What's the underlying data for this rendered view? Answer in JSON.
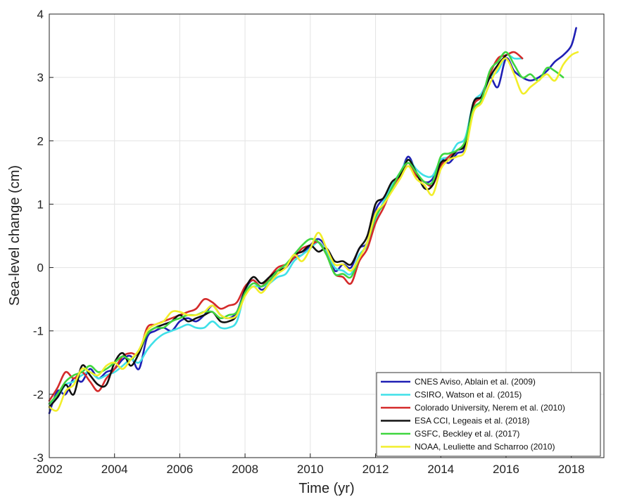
{
  "chart_data": {
    "type": "line",
    "xlabel": "Time (yr)",
    "ylabel": "Sea-level change (cm)",
    "xlim": [
      2002,
      2019
    ],
    "ylim": [
      -3,
      4
    ],
    "xticks": [
      2002,
      2004,
      2006,
      2008,
      2010,
      2012,
      2014,
      2016,
      2018
    ],
    "yticks": [
      -3,
      -2,
      -1,
      0,
      1,
      2,
      3,
      4
    ],
    "grid": true,
    "legend_position": "bottom-right",
    "series": [
      {
        "name": "CNES Aviso, Ablain et al. (2009)",
        "color": "#1f1fb4",
        "x": [
          2002.0,
          2002.25,
          2002.5,
          2002.75,
          2003.0,
          2003.25,
          2003.5,
          2003.75,
          2004.0,
          2004.25,
          2004.5,
          2004.75,
          2005.0,
          2005.25,
          2005.5,
          2005.75,
          2006.0,
          2006.25,
          2006.5,
          2006.75,
          2007.0,
          2007.25,
          2007.5,
          2007.75,
          2008.0,
          2008.25,
          2008.5,
          2008.75,
          2009.0,
          2009.25,
          2009.5,
          2009.75,
          2010.0,
          2010.25,
          2010.5,
          2010.75,
          2011.0,
          2011.25,
          2011.5,
          2011.75,
          2012.0,
          2012.25,
          2012.5,
          2012.75,
          2013.0,
          2013.25,
          2013.5,
          2013.75,
          2014.0,
          2014.25,
          2014.5,
          2014.75,
          2015.0,
          2015.25,
          2015.5,
          2015.75,
          2016.0,
          2016.25,
          2016.5,
          2016.75,
          2017.0,
          2017.25,
          2017.5,
          2017.75,
          2018.0,
          2018.15
        ],
        "y": [
          -2.3,
          -1.95,
          -2.0,
          -1.75,
          -1.8,
          -1.6,
          -1.75,
          -1.65,
          -1.6,
          -1.45,
          -1.4,
          -1.6,
          -1.1,
          -1.0,
          -0.95,
          -1.0,
          -0.85,
          -0.8,
          -0.85,
          -0.75,
          -0.6,
          -0.75,
          -0.8,
          -0.7,
          -0.35,
          -0.2,
          -0.35,
          -0.25,
          -0.05,
          0.0,
          0.15,
          0.2,
          0.35,
          0.45,
          0.3,
          -0.05,
          0.05,
          0.0,
          0.3,
          0.4,
          0.9,
          1.1,
          1.3,
          1.45,
          1.75,
          1.5,
          1.35,
          1.4,
          1.7,
          1.65,
          1.8,
          1.9,
          2.55,
          2.7,
          3.0,
          2.85,
          3.3,
          3.1,
          3.0,
          2.95,
          3.0,
          3.1,
          3.25,
          3.35,
          3.5,
          3.78
        ]
      },
      {
        "name": "CSIRO, Watson et al. (2015)",
        "color": "#3fe0e8",
        "x": [
          2002.0,
          2002.25,
          2002.5,
          2002.75,
          2003.0,
          2003.25,
          2003.5,
          2003.75,
          2004.0,
          2004.25,
          2004.5,
          2004.75,
          2005.0,
          2005.25,
          2005.5,
          2005.75,
          2006.0,
          2006.25,
          2006.5,
          2006.75,
          2007.0,
          2007.25,
          2007.5,
          2007.75,
          2008.0,
          2008.25,
          2008.5,
          2008.75,
          2009.0,
          2009.25,
          2009.5,
          2009.75,
          2010.0,
          2010.25,
          2010.5,
          2010.75,
          2011.0,
          2011.25,
          2011.5,
          2011.75,
          2012.0,
          2012.25,
          2012.5,
          2012.75,
          2013.0,
          2013.25,
          2013.5,
          2013.75,
          2014.0,
          2014.25,
          2014.5,
          2014.75,
          2015.0,
          2015.25,
          2015.5,
          2015.75,
          2016.0,
          2016.25,
          2016.5
        ],
        "y": [
          -2.15,
          -2.05,
          -1.85,
          -1.8,
          -1.7,
          -1.65,
          -1.75,
          -1.7,
          -1.65,
          -1.55,
          -1.45,
          -1.5,
          -1.3,
          -1.15,
          -1.05,
          -1.0,
          -0.95,
          -0.9,
          -0.95,
          -0.95,
          -0.85,
          -0.95,
          -0.95,
          -0.85,
          -0.4,
          -0.3,
          -0.3,
          -0.25,
          -0.15,
          -0.1,
          0.1,
          0.2,
          0.3,
          0.4,
          0.25,
          0.0,
          -0.05,
          -0.1,
          0.2,
          0.35,
          0.75,
          1.05,
          1.3,
          1.5,
          1.7,
          1.55,
          1.45,
          1.45,
          1.7,
          1.75,
          1.95,
          2.05,
          2.6,
          2.75,
          3.0,
          3.1,
          3.35,
          3.3,
          3.3
        ]
      },
      {
        "name": "Colorado University, Nerem et al. (2010)",
        "color": "#d42a2a",
        "x": [
          2002.0,
          2002.25,
          2002.5,
          2002.75,
          2003.0,
          2003.25,
          2003.5,
          2003.75,
          2004.0,
          2004.25,
          2004.5,
          2004.75,
          2005.0,
          2005.25,
          2005.5,
          2005.75,
          2006.0,
          2006.25,
          2006.5,
          2006.75,
          2007.0,
          2007.25,
          2007.5,
          2007.75,
          2008.0,
          2008.25,
          2008.5,
          2008.75,
          2009.0,
          2009.25,
          2009.5,
          2009.75,
          2010.0,
          2010.25,
          2010.5,
          2010.75,
          2011.0,
          2011.25,
          2011.5,
          2011.75,
          2012.0,
          2012.25,
          2012.5,
          2012.75,
          2013.0,
          2013.25,
          2013.5,
          2013.75,
          2014.0,
          2014.25,
          2014.5,
          2014.75,
          2015.0,
          2015.25,
          2015.5,
          2015.75,
          2016.0,
          2016.25,
          2016.5
        ],
        "y": [
          -2.1,
          -1.9,
          -1.65,
          -1.75,
          -1.65,
          -1.8,
          -1.95,
          -1.75,
          -1.6,
          -1.4,
          -1.35,
          -1.35,
          -0.95,
          -0.9,
          -0.85,
          -0.8,
          -0.75,
          -0.7,
          -0.65,
          -0.5,
          -0.55,
          -0.65,
          -0.6,
          -0.55,
          -0.3,
          -0.2,
          -0.3,
          -0.15,
          0.0,
          0.05,
          0.15,
          0.3,
          0.35,
          0.4,
          0.2,
          -0.1,
          -0.15,
          -0.25,
          0.1,
          0.3,
          0.7,
          0.95,
          1.25,
          1.45,
          1.65,
          1.45,
          1.35,
          1.3,
          1.6,
          1.75,
          1.85,
          1.95,
          2.55,
          2.7,
          3.05,
          3.3,
          3.35,
          3.4,
          3.3
        ]
      },
      {
        "name": "ESA CCI, Legeais et al. (2018)",
        "color": "#111111",
        "x": [
          2002.0,
          2002.25,
          2002.5,
          2002.75,
          2003.0,
          2003.25,
          2003.5,
          2003.75,
          2004.0,
          2004.25,
          2004.5,
          2004.75,
          2005.0,
          2005.25,
          2005.5,
          2005.75,
          2006.0,
          2006.25,
          2006.5,
          2006.75,
          2007.0,
          2007.25,
          2007.5,
          2007.75,
          2008.0,
          2008.25,
          2008.5,
          2008.75,
          2009.0,
          2009.25,
          2009.5,
          2009.75,
          2010.0,
          2010.25,
          2010.5,
          2010.75,
          2011.0,
          2011.25,
          2011.5,
          2011.75,
          2012.0,
          2012.25,
          2012.5,
          2012.75,
          2013.0,
          2013.25,
          2013.5,
          2013.75,
          2014.0,
          2014.25,
          2014.5,
          2014.75,
          2015.0,
          2015.25,
          2015.5,
          2015.75,
          2016.0
        ],
        "y": [
          -2.2,
          -2.05,
          -1.85,
          -2.0,
          -1.55,
          -1.7,
          -1.85,
          -1.85,
          -1.5,
          -1.35,
          -1.55,
          -1.35,
          -1.05,
          -0.95,
          -0.9,
          -0.85,
          -0.75,
          -0.85,
          -0.8,
          -0.75,
          -0.7,
          -0.85,
          -0.85,
          -0.75,
          -0.35,
          -0.15,
          -0.25,
          -0.15,
          -0.05,
          0.0,
          0.2,
          0.25,
          0.35,
          0.25,
          0.3,
          0.1,
          0.1,
          0.05,
          0.3,
          0.5,
          1.0,
          1.1,
          1.35,
          1.45,
          1.7,
          1.5,
          1.25,
          1.3,
          1.65,
          1.7,
          1.85,
          1.95,
          2.6,
          2.7,
          3.0,
          3.2,
          3.35
        ]
      },
      {
        "name": "GSFC, Beckley et al. (2017)",
        "color": "#3fd63f",
        "x": [
          2002.0,
          2002.25,
          2002.5,
          2002.75,
          2003.0,
          2003.25,
          2003.5,
          2003.75,
          2004.0,
          2004.25,
          2004.5,
          2004.75,
          2005.0,
          2005.25,
          2005.5,
          2005.75,
          2006.0,
          2006.25,
          2006.5,
          2006.75,
          2007.0,
          2007.25,
          2007.5,
          2007.75,
          2008.0,
          2008.25,
          2008.5,
          2008.75,
          2009.0,
          2009.25,
          2009.5,
          2009.75,
          2010.0,
          2010.25,
          2010.5,
          2010.75,
          2011.0,
          2011.25,
          2011.5,
          2011.75,
          2012.0,
          2012.25,
          2012.5,
          2012.75,
          2013.0,
          2013.25,
          2013.5,
          2013.75,
          2014.0,
          2014.25,
          2014.5,
          2014.75,
          2015.0,
          2015.25,
          2015.5,
          2015.75,
          2016.0,
          2016.25,
          2016.5,
          2016.75,
          2017.0,
          2017.25,
          2017.5,
          2017.75
        ],
        "y": [
          -2.15,
          -2.0,
          -1.8,
          -1.7,
          -1.65,
          -1.55,
          -1.65,
          -1.6,
          -1.5,
          -1.4,
          -1.45,
          -1.3,
          -1.05,
          -0.95,
          -0.95,
          -0.85,
          -0.8,
          -0.75,
          -0.75,
          -0.7,
          -0.7,
          -0.8,
          -0.75,
          -0.7,
          -0.4,
          -0.25,
          -0.3,
          -0.2,
          -0.05,
          0.05,
          0.2,
          0.35,
          0.45,
          0.4,
          0.2,
          -0.1,
          -0.1,
          -0.15,
          0.15,
          0.4,
          0.8,
          1.0,
          1.25,
          1.5,
          1.65,
          1.5,
          1.35,
          1.35,
          1.75,
          1.8,
          1.85,
          2.0,
          2.5,
          2.65,
          3.1,
          3.25,
          3.4,
          3.2,
          3.0,
          3.05,
          2.95,
          3.15,
          3.1,
          3.0
        ]
      },
      {
        "name": "NOAA, Leuliette and Scharroo (2010)",
        "color": "#f2ee2a",
        "x": [
          2002.0,
          2002.25,
          2002.5,
          2002.75,
          2003.0,
          2003.25,
          2003.5,
          2003.75,
          2004.0,
          2004.25,
          2004.5,
          2004.75,
          2005.0,
          2005.25,
          2005.5,
          2005.75,
          2006.0,
          2006.25,
          2006.5,
          2006.75,
          2007.0,
          2007.25,
          2007.5,
          2007.75,
          2008.0,
          2008.25,
          2008.5,
          2008.75,
          2009.0,
          2009.25,
          2009.5,
          2009.75,
          2010.0,
          2010.25,
          2010.5,
          2010.75,
          2011.0,
          2011.25,
          2011.5,
          2011.75,
          2012.0,
          2012.25,
          2012.5,
          2012.75,
          2013.0,
          2013.25,
          2013.5,
          2013.75,
          2014.0,
          2014.25,
          2014.5,
          2014.75,
          2015.0,
          2015.25,
          2015.5,
          2015.75,
          2016.0,
          2016.25,
          2016.5,
          2016.75,
          2017.0,
          2017.25,
          2017.5,
          2017.75,
          2018.0,
          2018.2
        ],
        "y": [
          -2.2,
          -2.25,
          -1.95,
          -1.85,
          -1.6,
          -1.65,
          -1.7,
          -1.55,
          -1.5,
          -1.6,
          -1.45,
          -1.3,
          -1.0,
          -0.9,
          -0.85,
          -0.7,
          -0.7,
          -0.75,
          -0.75,
          -0.7,
          -0.6,
          -0.75,
          -0.8,
          -0.75,
          -0.45,
          -0.3,
          -0.4,
          -0.25,
          -0.1,
          0.0,
          0.2,
          0.1,
          0.3,
          0.55,
          0.3,
          0.05,
          0.05,
          -0.05,
          0.15,
          0.4,
          0.85,
          1.0,
          1.2,
          1.4,
          1.6,
          1.4,
          1.3,
          1.15,
          1.55,
          1.7,
          1.75,
          1.85,
          2.45,
          2.6,
          2.9,
          3.15,
          3.3,
          3.05,
          2.75,
          2.85,
          2.95,
          3.05,
          2.95,
          3.2,
          3.35,
          3.4
        ]
      }
    ]
  }
}
